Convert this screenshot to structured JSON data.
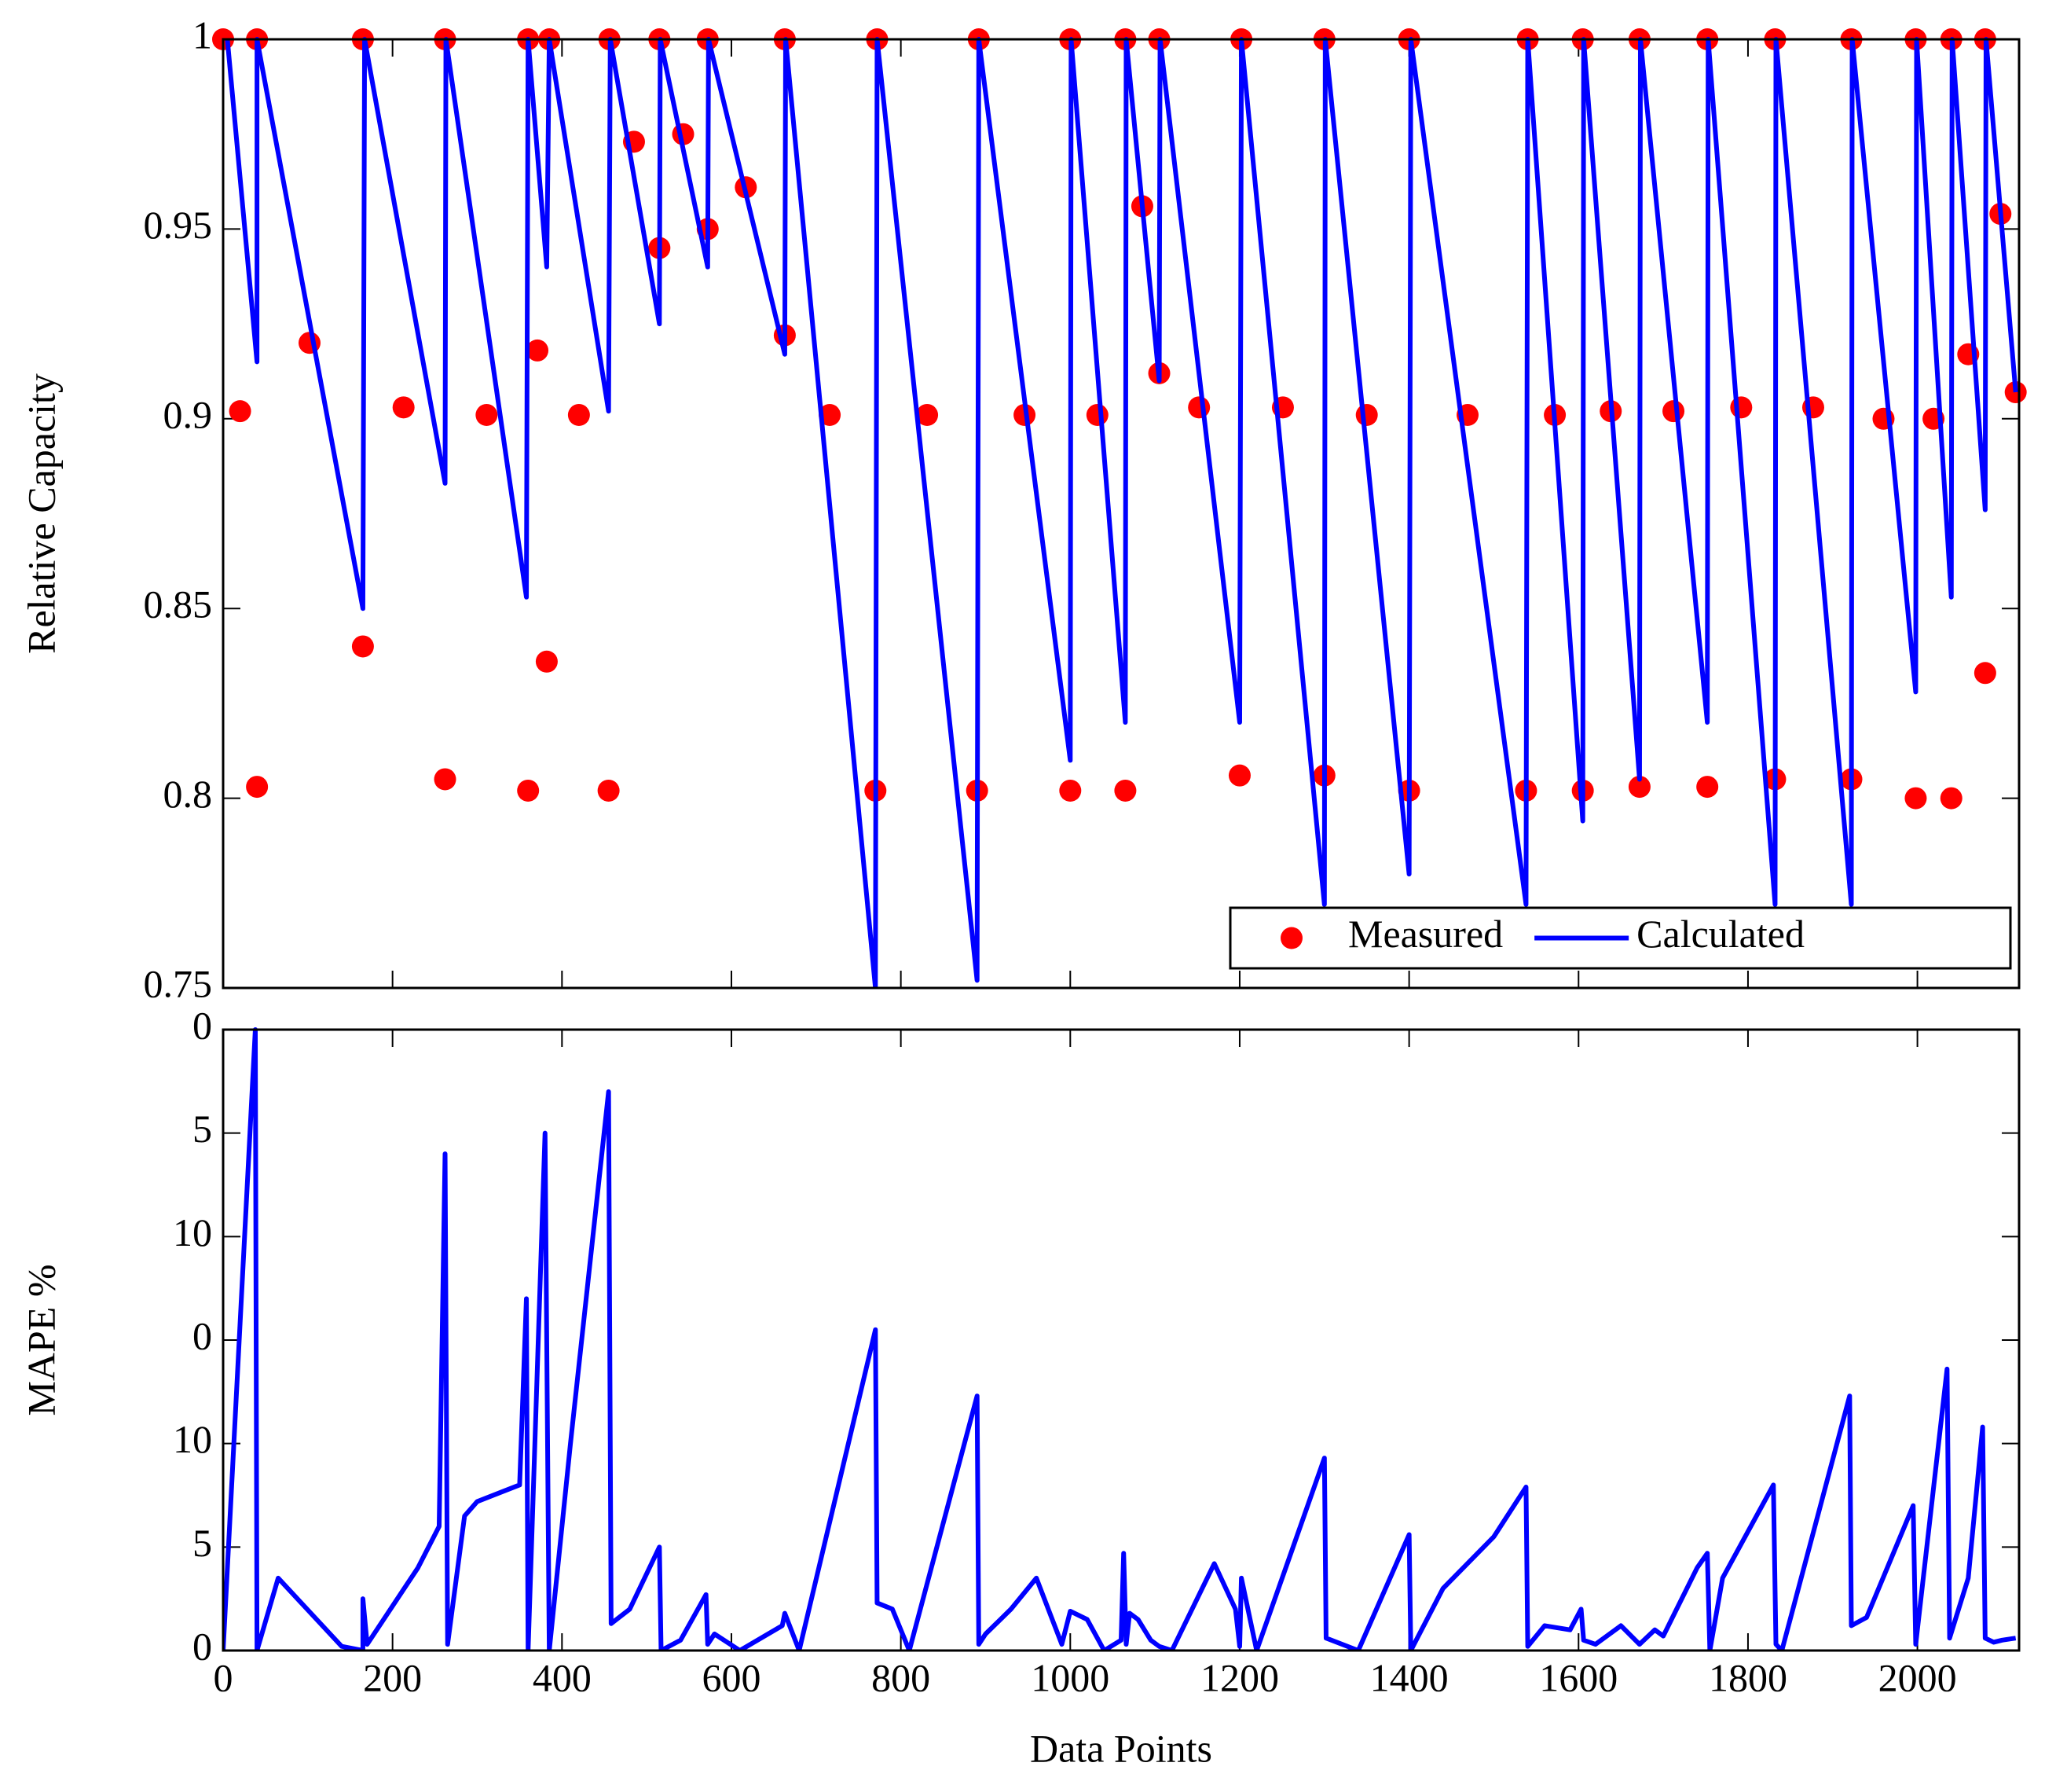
{
  "chart_data": [
    {
      "type": "line",
      "ylabel": "Relative Capacity",
      "xlim": [
        0,
        2120
      ],
      "ylim": [
        0.75,
        1
      ],
      "yticks": [
        0.75,
        0.8,
        0.85,
        0.9,
        0.95,
        1
      ],
      "legend": "lower right",
      "series": [
        {
          "name": "Measured",
          "color": "#ff0000",
          "mode": "markers",
          "x": [
            0,
            20,
            40,
            40,
            102,
            165,
            165,
            213,
            262,
            262,
            311,
            360,
            360,
            371,
            382,
            385,
            420,
            455,
            456,
            485,
            515,
            515,
            543,
            572,
            572,
            617,
            663,
            663,
            716,
            770,
            772,
            831,
            890,
            892,
            946,
            1000,
            1000,
            1032,
            1065,
            1065,
            1085,
            1105,
            1105,
            1152,
            1200,
            1202,
            1251,
            1300,
            1300,
            1350,
            1400,
            1400,
            1469,
            1538,
            1540,
            1572,
            1605,
            1605,
            1638,
            1672,
            1672,
            1712,
            1752,
            1752,
            1792,
            1832,
            1832,
            1877,
            1922,
            1922,
            1960,
            1998,
            1998,
            2019,
            2040,
            2040,
            2060,
            2080,
            2080,
            2098,
            2116
          ],
          "values": [
            1,
            0.902,
            0.803,
            1,
            0.92,
            0.84,
            1,
            0.903,
            0.805,
            1,
            0.901,
            0.802,
            1,
            0.918,
            0.836,
            1,
            0.901,
            0.802,
            1,
            0.973,
            0.945,
            1,
            0.975,
            0.95,
            1,
            0.961,
            0.922,
            1,
            0.901,
            0.802,
            1,
            0.901,
            0.802,
            1,
            0.901,
            0.802,
            1,
            0.901,
            0.802,
            1,
            0.956,
            0.912,
            1,
            0.903,
            0.806,
            1,
            0.903,
            0.806,
            1,
            0.901,
            0.802,
            1,
            0.901,
            0.802,
            1,
            0.901,
            0.802,
            1,
            0.902,
            0.803,
            1,
            0.902,
            0.803,
            1,
            0.903,
            0.805,
            1,
            0.903,
            0.805,
            1,
            0.9,
            0.8,
            1,
            0.9,
            0.8,
            1,
            0.917,
            0.833,
            1,
            0.954,
            0.907
          ]
        },
        {
          "name": "Calculated",
          "color": "#0000ff",
          "mode": "line",
          "x": [
            5,
            40,
            40,
            165,
            167,
            262,
            263,
            358,
            360,
            382,
            385,
            455,
            457,
            515,
            516,
            572,
            573,
            663,
            664,
            770,
            772,
            890,
            892,
            1000,
            1001,
            1065,
            1066,
            1105,
            1106,
            1200,
            1202,
            1300,
            1301,
            1400,
            1402,
            1538,
            1540,
            1605,
            1606,
            1672,
            1673,
            1752,
            1753,
            1832,
            1833,
            1922,
            1923,
            1998,
            1999,
            2040,
            2041,
            2080,
            2081,
            2116
          ],
          "values": [
            1,
            0.915,
            1,
            0.85,
            1,
            0.883,
            1,
            0.853,
            1,
            0.94,
            1,
            0.902,
            1,
            0.925,
            1,
            0.94,
            1,
            0.917,
            1,
            0.75,
            1,
            0.752,
            1,
            0.81,
            1,
            0.82,
            1,
            0.91,
            1,
            0.82,
            1,
            0.772,
            1,
            0.78,
            1,
            0.772,
            1,
            0.794,
            1,
            0.805,
            1,
            0.82,
            1,
            0.772,
            1,
            0.772,
            1,
            0.828,
            1,
            0.853,
            1,
            0.876,
            1,
            0.907
          ]
        }
      ]
    },
    {
      "type": "line",
      "ylabel": "MAPE %",
      "xlabel": "Data Points",
      "xlim": [
        0,
        2120
      ],
      "xticks": [
        0,
        200,
        400,
        600,
        800,
        1000,
        1200,
        1400,
        1600,
        1800,
        2000
      ],
      "ylim": [
        0,
        30
      ],
      "yticks": [
        0,
        5,
        10,
        {
          "value": 15,
          "label": "0"
        },
        {
          "value": 20,
          "label": "10"
        },
        {
          "value": 25,
          "label": "5"
        },
        {
          "value": 30,
          "label": "0"
        }
      ],
      "color": "#0000ff",
      "x": [
        0,
        38,
        40,
        65,
        140,
        165,
        165,
        170,
        230,
        255,
        262,
        265,
        285,
        300,
        350,
        358,
        360,
        380,
        385,
        410,
        455,
        458,
        480,
        515,
        517,
        540,
        570,
        572,
        580,
        610,
        660,
        663,
        680,
        770,
        772,
        790,
        810,
        890,
        892,
        900,
        930,
        960,
        990,
        1000,
        1020,
        1040,
        1060,
        1063,
        1066,
        1070,
        1080,
        1095,
        1105,
        1120,
        1170,
        1195,
        1200,
        1202,
        1220,
        1300,
        1302,
        1340,
        1400,
        1402,
        1440,
        1500,
        1538,
        1540,
        1560,
        1590,
        1603,
        1606,
        1620,
        1650,
        1672,
        1690,
        1700,
        1740,
        1752,
        1755,
        1770,
        1830,
        1833,
        1840,
        1920,
        1922,
        1940,
        1995,
        1998,
        2035,
        2038,
        2060,
        2077,
        2080,
        2090,
        2100,
        2116
      ],
      "values": [
        0,
        30,
        0,
        3.5,
        0.2,
        0,
        2.5,
        0.3,
        4,
        6,
        24,
        0.3,
        6.5,
        7.2,
        8,
        17,
        0,
        25,
        0,
        10,
        27,
        1.3,
        2,
        5,
        0,
        0.5,
        2.7,
        0.3,
        0.8,
        0,
        1.2,
        1.8,
        0,
        15.5,
        2.3,
        2,
        0,
        12.3,
        0.3,
        0.8,
        2,
        3.5,
        0.3,
        1.9,
        1.5,
        0,
        0.5,
        4.7,
        0.3,
        1.8,
        1.5,
        0.5,
        0.2,
        0,
        4.2,
        2,
        0.2,
        3.5,
        0,
        9.3,
        0.6,
        0,
        5.6,
        0,
        3,
        5.5,
        7.9,
        0.2,
        1.2,
        1,
        2,
        0.5,
        0.3,
        1.2,
        0.3,
        1,
        0.7,
        4,
        4.7,
        0,
        3.5,
        8,
        0.3,
        0,
        12.3,
        1.2,
        1.6,
        7,
        0.3,
        13.6,
        0.6,
        3.5,
        10.8,
        0.6,
        0.4,
        0.5,
        0.6
      ]
    }
  ]
}
